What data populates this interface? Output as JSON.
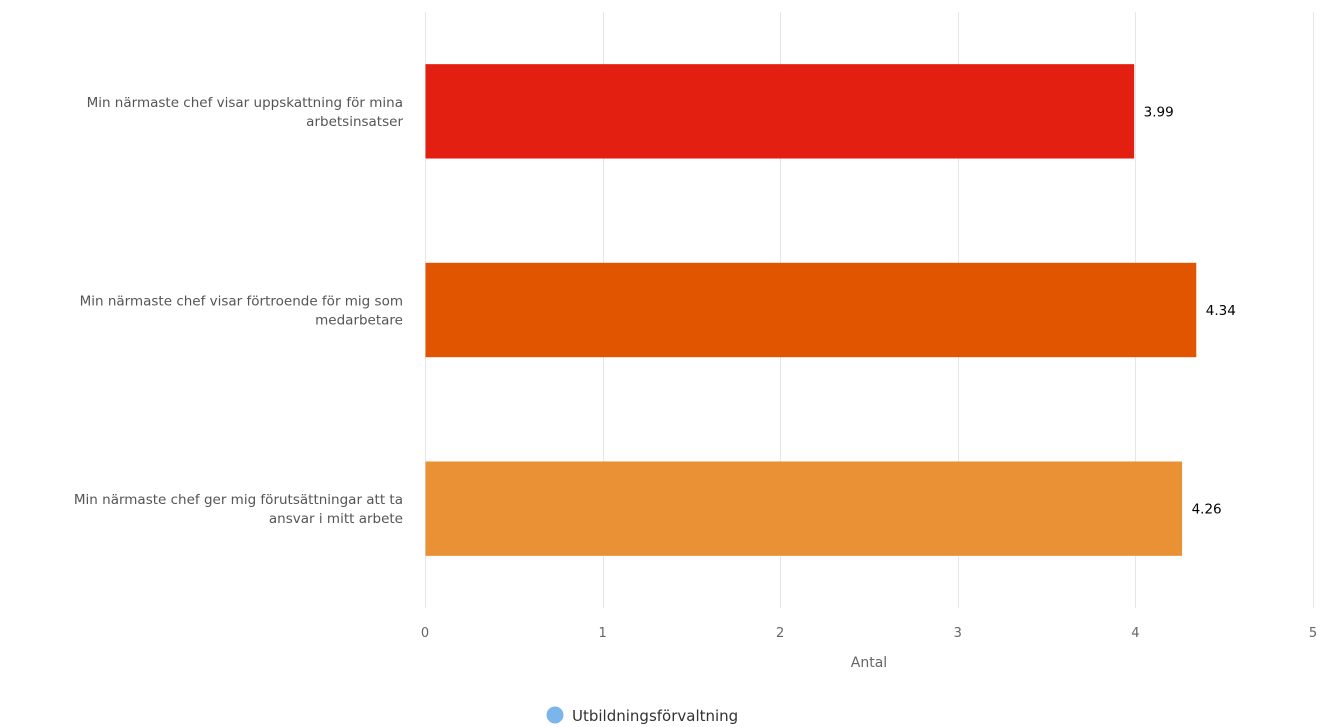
{
  "chart_data": {
    "type": "bar",
    "orientation": "horizontal",
    "categories": [
      [
        "Min närmaste chef visar uppskattning för mina",
        "arbetsinsatser"
      ],
      [
        "Min närmaste chef visar förtroende för mig som",
        "medarbetare"
      ],
      [
        "Min närmaste chef ger mig förutsättningar att ta",
        "ansvar i mitt arbete"
      ]
    ],
    "series": [
      {
        "name": "Utbildningsförvaltning",
        "values": [
          3.99,
          4.34,
          4.26
        ],
        "data_labels": [
          "3.99",
          "4.34",
          "4.26"
        ]
      }
    ],
    "bar_colors": [
      "#e31f12",
      "#e15500",
      "#eb9135"
    ],
    "legend_color": "#7cb5ec",
    "xlabel": "Antal",
    "xlim": [
      0,
      5
    ],
    "xticks": [
      0,
      1,
      2,
      3,
      4,
      5
    ],
    "xtick_labels": [
      "0",
      "1",
      "2",
      "3",
      "4",
      "5"
    ],
    "grid": true,
    "grid_color": "#e6e6e6",
    "legend_position": "bottom-center"
  }
}
